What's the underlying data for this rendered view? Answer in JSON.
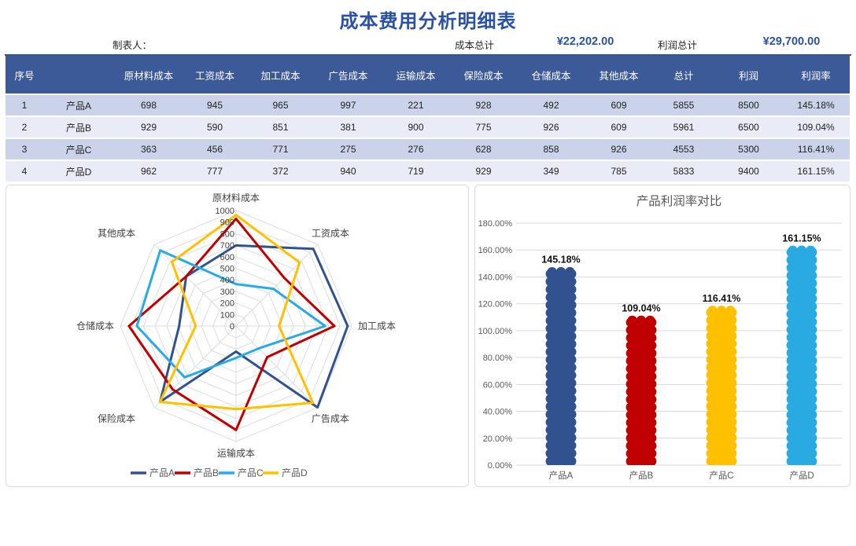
{
  "header": {
    "title": "成本费用分析明细表",
    "preparer_label": "制表人：",
    "cost_total_label": "成本总计",
    "cost_total_value": "¥22,202.00",
    "profit_total_label": "利润总计",
    "profit_total_value": "¥29,700.00"
  },
  "table": {
    "columns": [
      "序号",
      "",
      "原材料成本",
      "工资成本",
      "加工成本",
      "广告成本",
      "运输成本",
      "保险成本",
      "仓储成本",
      "其他成本",
      "总计",
      "利润",
      "利润率"
    ],
    "rows": [
      [
        "1",
        "产品A",
        "698",
        "945",
        "965",
        "997",
        "221",
        "928",
        "492",
        "609",
        "5855",
        "8500",
        "145.18%"
      ],
      [
        "2",
        "产品B",
        "929",
        "590",
        "851",
        "381",
        "900",
        "775",
        "926",
        "609",
        "5961",
        "6500",
        "109.04%"
      ],
      [
        "3",
        "产品C",
        "363",
        "456",
        "771",
        "275",
        "276",
        "628",
        "858",
        "926",
        "4553",
        "5300",
        "116.41%"
      ],
      [
        "4",
        "产品D",
        "962",
        "777",
        "372",
        "940",
        "719",
        "929",
        "349",
        "785",
        "5833",
        "9400",
        "161.15%"
      ]
    ]
  },
  "chart_data": [
    {
      "type": "radar",
      "title": "",
      "axes": [
        "原材料成本",
        "工资成本",
        "加工成本",
        "广告成本",
        "运输成本",
        "保险成本",
        "仓储成本",
        "其他成本"
      ],
      "rmax": 1000,
      "rstep": 100,
      "tick_labels": [
        "0",
        "100",
        "200",
        "300",
        "400",
        "500",
        "600",
        "700",
        "800",
        "900",
        "1000"
      ],
      "series": [
        {
          "name": "产品A",
          "color": "#31528F",
          "values": [
            698,
            945,
            965,
            997,
            221,
            928,
            492,
            609
          ]
        },
        {
          "name": "产品B",
          "color": "#C00000",
          "values": [
            929,
            590,
            851,
            381,
            900,
            775,
            926,
            609
          ]
        },
        {
          "name": "产品C",
          "color": "#29ABE2",
          "values": [
            363,
            456,
            771,
            275,
            276,
            628,
            858,
            926
          ]
        },
        {
          "name": "产品D",
          "color": "#FFC000",
          "values": [
            962,
            777,
            372,
            940,
            719,
            929,
            349,
            785
          ]
        }
      ],
      "legend_position": "bottom",
      "grid": true
    },
    {
      "type": "bar",
      "title": "产品利润率对比",
      "categories": [
        "产品A",
        "产品B",
        "产品C",
        "产品D"
      ],
      "values": [
        145.18,
        109.04,
        116.41,
        161.15
      ],
      "data_labels": [
        "145.18%",
        "109.04%",
        "116.41%",
        "161.15%"
      ],
      "bar_colors": [
        "#31528F",
        "#C00000",
        "#FFC000",
        "#29ABE2"
      ],
      "xlabel": "",
      "ylabel": "",
      "ylim": [
        0,
        180
      ],
      "ytick_step": 20,
      "ytick_labels": [
        "0.00%",
        "20.00%",
        "40.00%",
        "60.00%",
        "80.00%",
        "100.00%",
        "120.00%",
        "140.00%",
        "160.00%",
        "180.00%"
      ],
      "grid": true,
      "legend_position": "none"
    }
  ],
  "colors": {
    "title_blue": "#2B51A7",
    "header_underline": "#2F55A0",
    "table_header_bg": "#3C5A98",
    "table_row_odd": "#CBD3EB",
    "table_row_even": "#E9ECF6",
    "panel_border": "#D9D9D9",
    "grid_gray": "#DCDCDC",
    "axis_text_gray": "#595959"
  }
}
